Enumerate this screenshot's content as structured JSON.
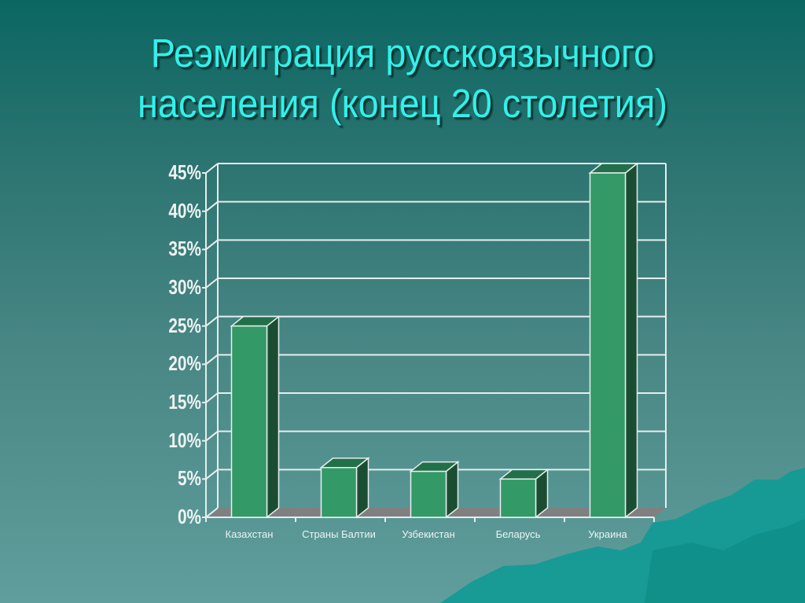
{
  "slide": {
    "title_line1": "Реэмиграция русскоязычного",
    "title_line2": "населения (конец 20 столетия)"
  },
  "colors": {
    "title": "#33f0ea",
    "bar_front": "#339966",
    "bar_top": "#22704a",
    "bar_side": "#1b4d33",
    "floor": "#808080",
    "grid": "#e6eeee"
  },
  "chart_data": {
    "type": "bar",
    "title": "Реэмиграция русскоязычного населения (конец 20 столетия)",
    "xlabel": "",
    "ylabel": "",
    "categories": [
      "Казахстан",
      "Страны Балтии",
      "Узбекистан",
      "Беларусь",
      "Украина"
    ],
    "values": [
      25,
      6.5,
      6,
      5,
      45
    ],
    "unit": "%",
    "ylim": [
      0,
      45
    ],
    "yticks": [
      "0%",
      "5%",
      "10%",
      "15%",
      "20%",
      "25%",
      "30%",
      "35%",
      "40%",
      "45%"
    ],
    "grid": true,
    "style": "3d-column",
    "legend": null
  }
}
